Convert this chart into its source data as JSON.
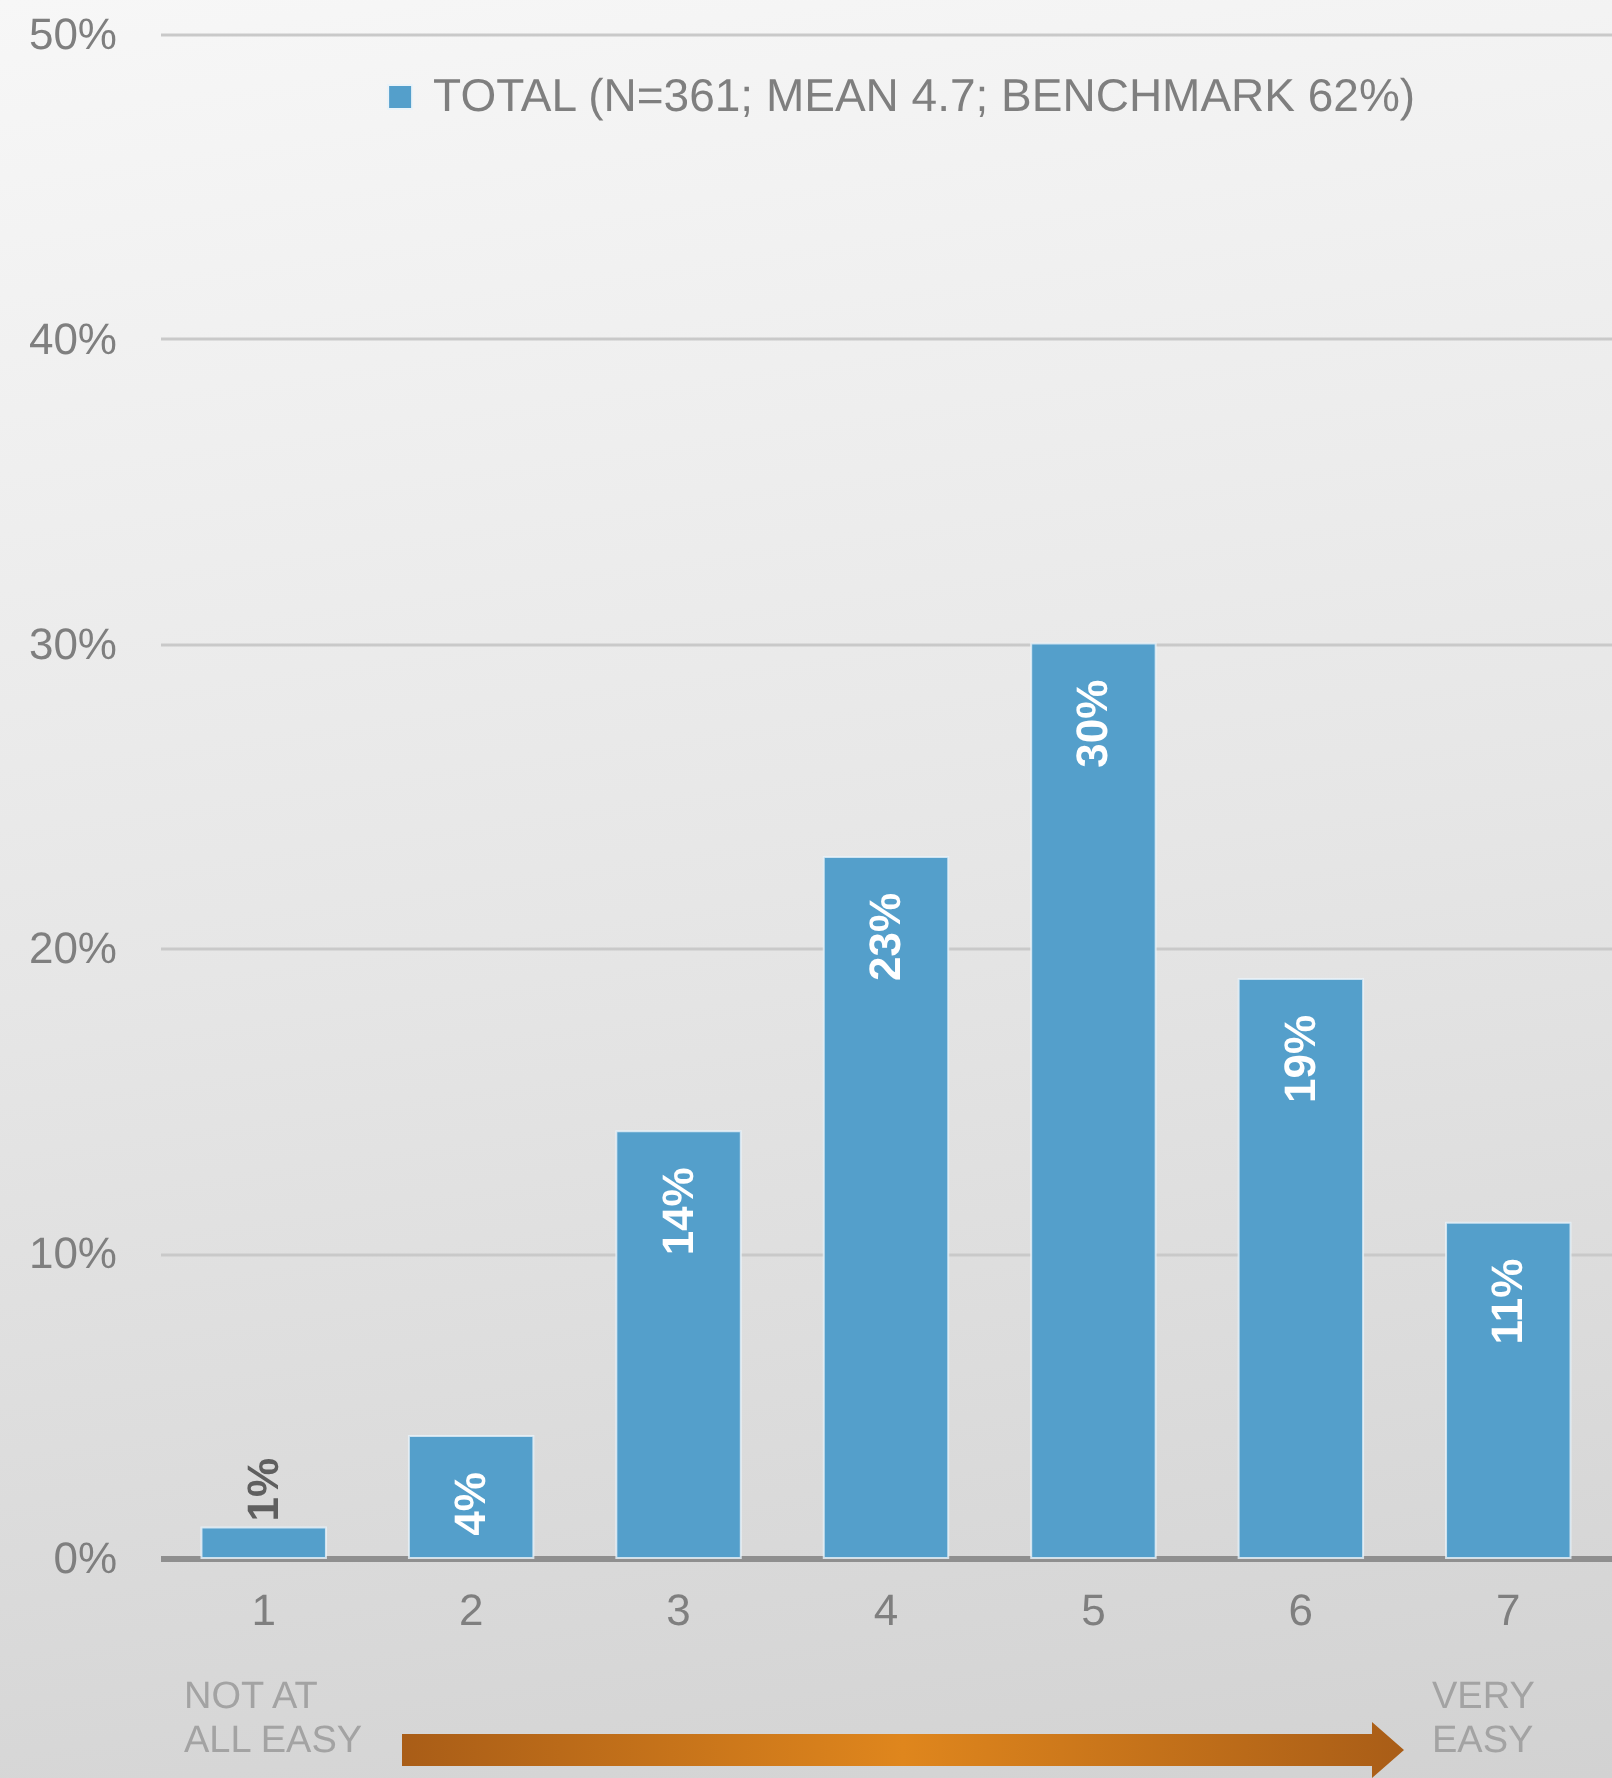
{
  "chart_data": {
    "type": "bar",
    "categories": [
      "1",
      "2",
      "3",
      "4",
      "5",
      "6",
      "7"
    ],
    "series": [
      {
        "name": "TOTAL (N=361; MEAN 4.7; BENCHMARK 62%)",
        "color": "#549fcb",
        "values": [
          1,
          4,
          14,
          23,
          30,
          19,
          11
        ],
        "value_labels": [
          "1%",
          "4%",
          "14%",
          "23%",
          "30%",
          "19%",
          "11%"
        ]
      }
    ],
    "ylim": [
      0,
      50
    ],
    "yticks": [
      {
        "value": 0,
        "label": "0%"
      },
      {
        "value": 10,
        "label": "10%"
      },
      {
        "value": 20,
        "label": "20%"
      },
      {
        "value": 30,
        "label": "30%"
      },
      {
        "value": 40,
        "label": "40%"
      },
      {
        "value": 50,
        "label": "50%"
      }
    ],
    "grid": "y",
    "legend": "top",
    "annotations": [
      "NOT AT ALL EASY",
      "VERY EASY"
    ]
  }
}
